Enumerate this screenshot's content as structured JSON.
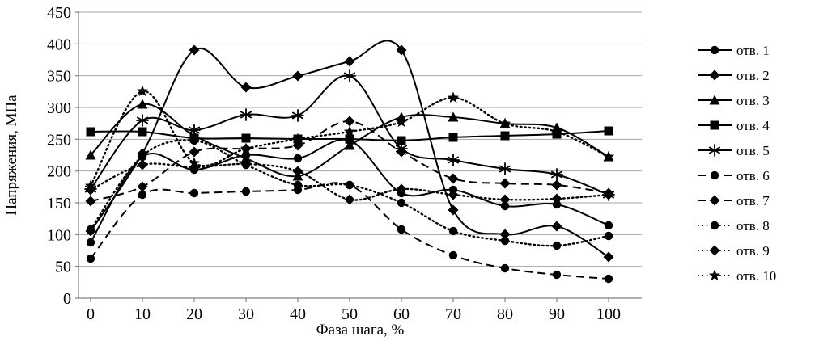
{
  "chart_data": {
    "type": "line",
    "title": "",
    "xlabel": "Фаза шага, %",
    "ylabel": "Напряжения, МПа",
    "x": [
      0,
      10,
      20,
      30,
      40,
      50,
      60,
      70,
      80,
      90,
      100
    ],
    "xlim": [
      0,
      100
    ],
    "ylim": [
      0,
      450
    ],
    "ytick_step": 50,
    "grid": true,
    "legend_position": "right",
    "series": [
      {
        "name": "отв. 1",
        "line": "solid",
        "marker": "circle",
        "values": [
          88,
          222,
          202,
          225,
          220,
          248,
          165,
          170,
          145,
          147,
          115
        ]
      },
      {
        "name": "отв. 2",
        "line": "solid",
        "marker": "diamond",
        "values": [
          105,
          228,
          390,
          332,
          350,
          372,
          390,
          138,
          100,
          113,
          65
        ]
      },
      {
        "name": "отв. 3",
        "line": "solid",
        "marker": "triangle",
        "values": [
          225,
          305,
          255,
          220,
          192,
          240,
          285,
          285,
          275,
          268,
          222
        ]
      },
      {
        "name": "отв. 4",
        "line": "solid",
        "marker": "square",
        "values": [
          262,
          262,
          252,
          252,
          251,
          251,
          248,
          253,
          255,
          258,
          263
        ]
      },
      {
        "name": "отв. 5",
        "line": "solid",
        "marker": "asterisk",
        "values": [
          172,
          280,
          265,
          288,
          287,
          350,
          235,
          218,
          203,
          195,
          163
        ]
      },
      {
        "name": "отв. 6",
        "line": "dashed",
        "marker": "circle",
        "values": [
          62,
          163,
          165,
          168,
          170,
          178,
          108,
          68,
          47,
          37,
          30
        ]
      },
      {
        "name": "отв. 7",
        "line": "dashed",
        "marker": "diamond",
        "values": [
          152,
          175,
          230,
          235,
          240,
          278,
          230,
          188,
          180,
          178,
          165
        ]
      },
      {
        "name": "отв. 8",
        "line": "dotted",
        "marker": "circle",
        "values": [
          108,
          224,
          248,
          210,
          178,
          178,
          150,
          105,
          90,
          82,
          98
        ]
      },
      {
        "name": "отв. 9",
        "line": "dotted",
        "marker": "diamond",
        "values": [
          170,
          210,
          206,
          211,
          200,
          155,
          172,
          163,
          155,
          156,
          163
        ]
      },
      {
        "name": "отв. 10",
        "line": "dotted",
        "marker": "star",
        "values": [
          177,
          325,
          212,
          235,
          250,
          262,
          277,
          315,
          275,
          262,
          222
        ]
      }
    ]
  },
  "colors": {
    "series": "#000000",
    "grid": "#a6a6a6",
    "axis": "#808080",
    "background": "#ffffff"
  }
}
